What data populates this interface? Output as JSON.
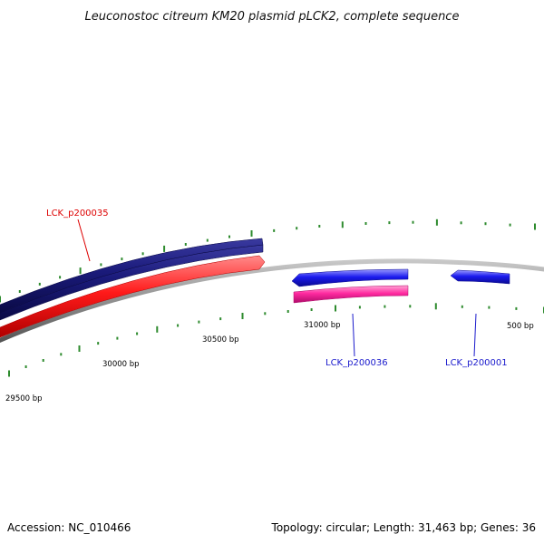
{
  "title": "Leuconostoc citreum KM20 plasmid pLCK2, complete sequence",
  "colors": {
    "backbone": "#8a8a8a",
    "tick": "#2e8b2e",
    "navy": "#1a1a7a",
    "red": "#ff1a1a",
    "blue": "#1a1aee",
    "pink": "#ff2aa0",
    "label_red": "#dd0000",
    "label_blue": "#1a1acc"
  },
  "position_labels": [
    "29500 bp",
    "30000 bp",
    "30500 bp",
    "31000 bp",
    "500 bp"
  ],
  "genes": [
    {
      "name": "LCK_p200035",
      "label_color": "#dd0000"
    },
    {
      "name": "LCK_p200036",
      "label_color": "#1a1acc"
    },
    {
      "name": "LCK_p200001",
      "label_color": "#1a1acc"
    }
  ],
  "footer": {
    "accession": "Accession: NC_010466",
    "summary": "Topology: circular; Length: 31,463 bp; Genes: 36"
  }
}
